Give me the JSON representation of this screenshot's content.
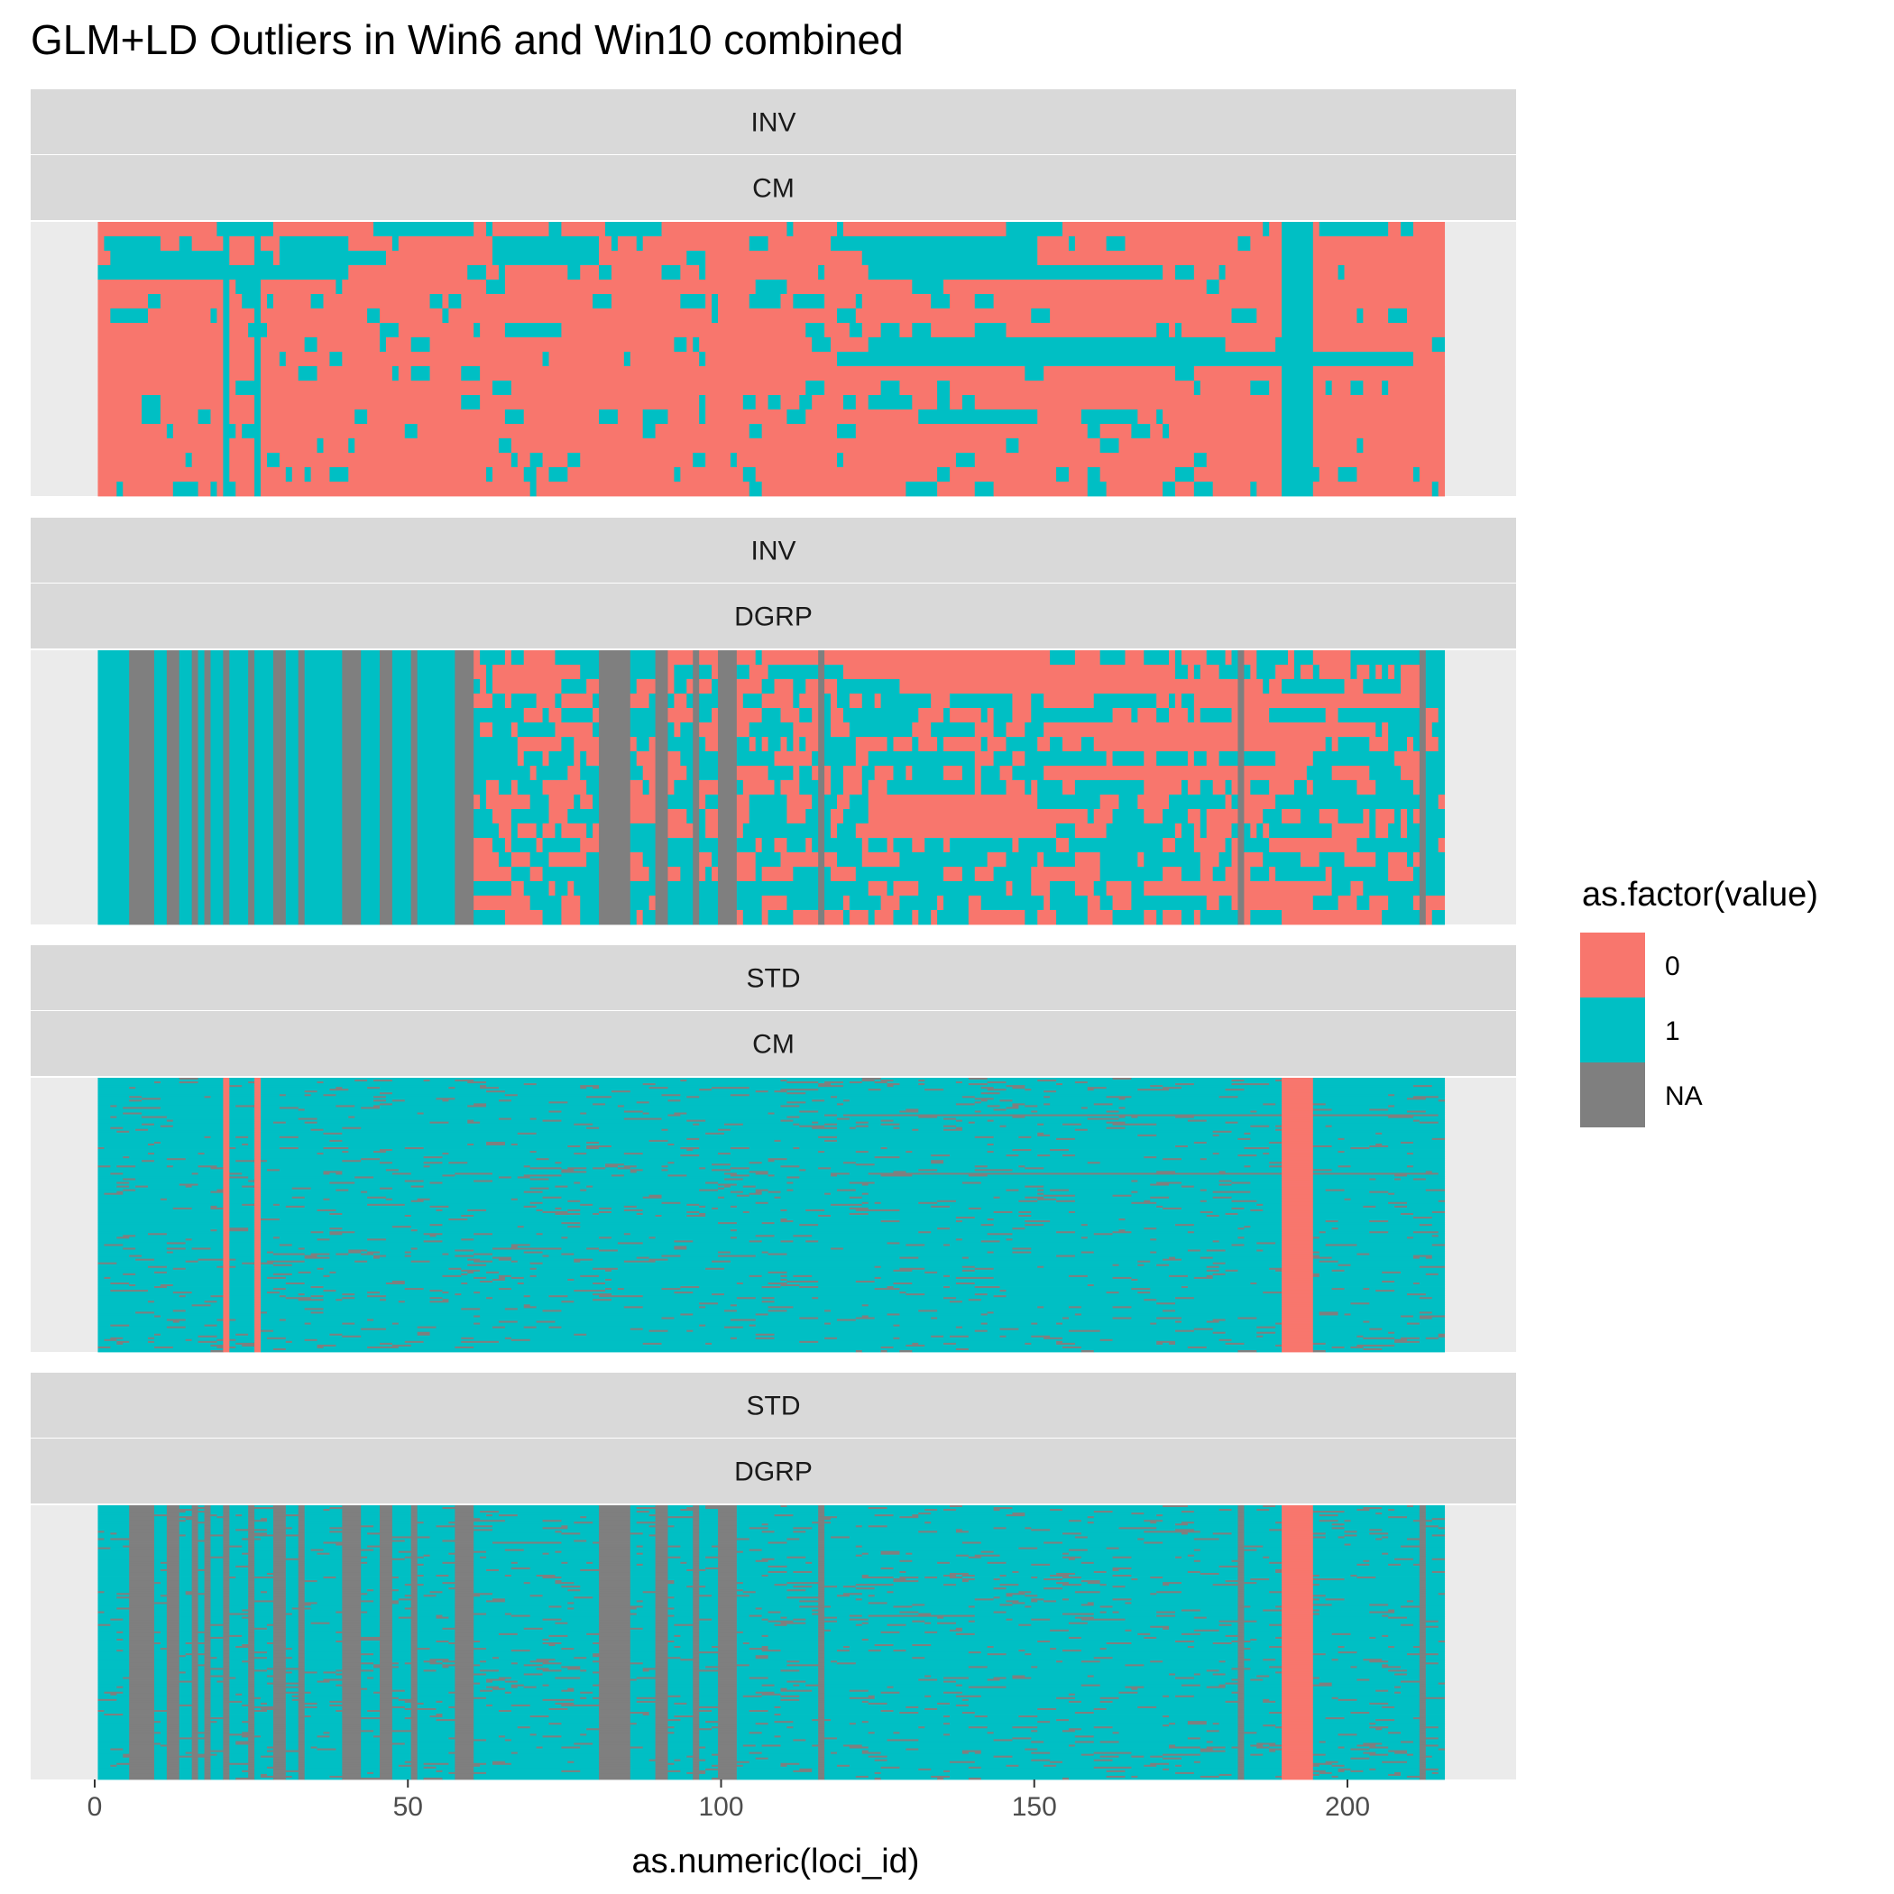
{
  "chart_data": {
    "type": "heatmap",
    "title": "GLM+LD Outliers in Win6 and Win10 combined",
    "xlabel": "as.numeric(loci_id)",
    "ylabel": "",
    "xlim": [
      0,
      226
    ],
    "x_ticks": [
      0,
      50,
      100,
      150,
      200
    ],
    "x_tick_labels": [
      "0",
      "50",
      "100",
      "150",
      "200"
    ],
    "loci_range": [
      1,
      215
    ],
    "grid": true,
    "legend": {
      "title": "as.factor(value)",
      "position": "right",
      "entries": [
        {
          "label": "0",
          "color": "#F8766D"
        },
        {
          "label": "1",
          "color": "#00BFC4"
        },
        {
          "label": "NA",
          "color": "#7F7F7F"
        }
      ]
    },
    "panels": [
      {
        "strips": [
          "INV",
          "CM"
        ],
        "n_rows": 19,
        "base_value": "0",
        "note": "mostly 0; loci 190-194 all 1; loci 21 and 26 all 1; many 1 cells in top rows",
        "full_columns": [
          {
            "from": 21,
            "to": 21,
            "value": "1"
          },
          {
            "from": 26,
            "to": 26,
            "value": "1"
          },
          {
            "from": 190,
            "to": 194,
            "value": "1"
          }
        ],
        "row_segments": [
          {
            "row": 0,
            "from": 20,
            "to": 28,
            "value": "1"
          },
          {
            "row": 0,
            "from": 45,
            "to": 60,
            "value": "1"
          },
          {
            "row": 0,
            "from": 82,
            "to": 90,
            "value": "1"
          },
          {
            "row": 0,
            "from": 146,
            "to": 154,
            "value": "1"
          },
          {
            "row": 0,
            "from": 196,
            "to": 204,
            "value": "1"
          },
          {
            "row": 1,
            "from": 2,
            "to": 10,
            "value": "1"
          },
          {
            "row": 1,
            "from": 30,
            "to": 40,
            "value": "1"
          },
          {
            "row": 1,
            "from": 64,
            "to": 80,
            "value": "1"
          },
          {
            "row": 1,
            "from": 118,
            "to": 150,
            "value": "1"
          },
          {
            "row": 2,
            "from": 4,
            "to": 20,
            "value": "1"
          },
          {
            "row": 2,
            "from": 30,
            "to": 44,
            "value": "1"
          },
          {
            "row": 2,
            "from": 64,
            "to": 80,
            "value": "1"
          },
          {
            "row": 2,
            "from": 124,
            "to": 150,
            "value": "1"
          },
          {
            "row": 3,
            "from": 1,
            "to": 40,
            "value": "1"
          },
          {
            "row": 3,
            "from": 124,
            "to": 170,
            "value": "1"
          },
          {
            "row": 7,
            "from": 67,
            "to": 74,
            "value": "1"
          },
          {
            "row": 8,
            "from": 124,
            "to": 180,
            "value": "1"
          },
          {
            "row": 9,
            "from": 119,
            "to": 210,
            "value": "1"
          },
          {
            "row": 12,
            "from": 124,
            "to": 130,
            "value": "1"
          },
          {
            "row": 13,
            "from": 132,
            "to": 150,
            "value": "1"
          },
          {
            "row": 13,
            "from": 158,
            "to": 166,
            "value": "1"
          }
        ],
        "scatter": {
          "value": "1",
          "density": 0.05,
          "col_range": [
            1,
            215
          ]
        }
      },
      {
        "strips": [
          "INV",
          "DGRP"
        ],
        "n_rows": 19,
        "base_value": "1",
        "note": "mixed 0/1 with many NA columns; right half largely 0",
        "full_columns": [
          {
            "from": 6,
            "to": 9,
            "value": "NA"
          },
          {
            "from": 12,
            "to": 13,
            "value": "NA"
          },
          {
            "from": 16,
            "to": 16,
            "value": "NA"
          },
          {
            "from": 18,
            "to": 18,
            "value": "NA"
          },
          {
            "from": 21,
            "to": 21,
            "value": "NA"
          },
          {
            "from": 25,
            "to": 25,
            "value": "NA"
          },
          {
            "from": 29,
            "to": 30,
            "value": "NA"
          },
          {
            "from": 33,
            "to": 33,
            "value": "NA"
          },
          {
            "from": 40,
            "to": 42,
            "value": "NA"
          },
          {
            "from": 46,
            "to": 47,
            "value": "NA"
          },
          {
            "from": 51,
            "to": 51,
            "value": "NA"
          },
          {
            "from": 58,
            "to": 60,
            "value": "NA"
          },
          {
            "from": 81,
            "to": 85,
            "value": "NA"
          },
          {
            "from": 90,
            "to": 91,
            "value": "NA"
          },
          {
            "from": 96,
            "to": 96,
            "value": "NA"
          },
          {
            "from": 100,
            "to": 102,
            "value": "NA"
          },
          {
            "from": 116,
            "to": 116,
            "value": "NA"
          },
          {
            "from": 183,
            "to": 183,
            "value": "NA"
          },
          {
            "from": 212,
            "to": 212,
            "value": "NA"
          }
        ],
        "row_segments": [
          {
            "row": 0,
            "from": 108,
            "to": 150,
            "value": "0"
          },
          {
            "row": 1,
            "from": 64,
            "to": 76,
            "value": "0"
          },
          {
            "row": 1,
            "from": 120,
            "to": 170,
            "value": "0"
          },
          {
            "row": 2,
            "from": 64,
            "to": 74,
            "value": "0"
          },
          {
            "row": 2,
            "from": 130,
            "to": 186,
            "value": "0"
          },
          {
            "row": 3,
            "from": 176,
            "to": 210,
            "value": "0"
          },
          {
            "row": 5,
            "from": 152,
            "to": 200,
            "value": "0"
          },
          {
            "row": 6,
            "from": 68,
            "to": 72,
            "value": "0"
          },
          {
            "row": 6,
            "from": 162,
            "to": 196,
            "value": "0"
          },
          {
            "row": 8,
            "from": 158,
            "to": 190,
            "value": "0"
          },
          {
            "row": 10,
            "from": 124,
            "to": 150,
            "value": "0"
          },
          {
            "row": 11,
            "from": 124,
            "to": 158,
            "value": "0"
          },
          {
            "row": 12,
            "from": 124,
            "to": 150,
            "value": "0"
          },
          {
            "row": 16,
            "from": 168,
            "to": 196,
            "value": "0"
          },
          {
            "row": 17,
            "from": 182,
            "to": 194,
            "value": "0"
          },
          {
            "row": 18,
            "from": 190,
            "to": 194,
            "value": "0"
          }
        ],
        "scatter": {
          "value": "0",
          "density": 0.22,
          "col_range": [
            60,
            215
          ]
        }
      },
      {
        "strips": [
          "STD",
          "CM"
        ],
        "n_rows": 150,
        "base_value": "1",
        "note": "mostly 1; loci 190-194 and 21, 26 are 0; scattered NA",
        "full_columns": [
          {
            "from": 21,
            "to": 21,
            "value": "0"
          },
          {
            "from": 26,
            "to": 26,
            "value": "0"
          },
          {
            "from": 190,
            "to": 194,
            "value": "0"
          }
        ],
        "row_segments": [
          {
            "row": 20,
            "from": 120,
            "to": 214,
            "value": "NA"
          },
          {
            "row": 52,
            "from": 124,
            "to": 214,
            "value": "NA"
          },
          {
            "row": 93,
            "from": 66,
            "to": 74,
            "value": "NA"
          }
        ],
        "scatter": {
          "value": "NA",
          "density": 0.035,
          "col_range": [
            1,
            215
          ]
        }
      },
      {
        "strips": [
          "STD",
          "DGRP"
        ],
        "n_rows": 150,
        "base_value": "1",
        "note": "mostly 1; NA columns as in INV/DGRP; loci 190-194 are 0",
        "full_columns": [
          {
            "from": 6,
            "to": 9,
            "value": "NA"
          },
          {
            "from": 12,
            "to": 13,
            "value": "NA"
          },
          {
            "from": 16,
            "to": 16,
            "value": "NA"
          },
          {
            "from": 18,
            "to": 18,
            "value": "NA"
          },
          {
            "from": 21,
            "to": 21,
            "value": "NA"
          },
          {
            "from": 25,
            "to": 25,
            "value": "NA"
          },
          {
            "from": 29,
            "to": 30,
            "value": "NA"
          },
          {
            "from": 33,
            "to": 33,
            "value": "NA"
          },
          {
            "from": 40,
            "to": 42,
            "value": "NA"
          },
          {
            "from": 46,
            "to": 47,
            "value": "NA"
          },
          {
            "from": 51,
            "to": 51,
            "value": "NA"
          },
          {
            "from": 58,
            "to": 60,
            "value": "NA"
          },
          {
            "from": 81,
            "to": 85,
            "value": "NA"
          },
          {
            "from": 90,
            "to": 91,
            "value": "NA"
          },
          {
            "from": 96,
            "to": 96,
            "value": "NA"
          },
          {
            "from": 100,
            "to": 102,
            "value": "NA"
          },
          {
            "from": 116,
            "to": 116,
            "value": "NA"
          },
          {
            "from": 183,
            "to": 183,
            "value": "NA"
          },
          {
            "from": 212,
            "to": 212,
            "value": "NA"
          },
          {
            "from": 190,
            "to": 194,
            "value": "0"
          }
        ],
        "row_segments": [
          {
            "row": 20,
            "from": 64,
            "to": 74,
            "value": "NA"
          },
          {
            "row": 14,
            "from": 168,
            "to": 176,
            "value": "NA"
          },
          {
            "row": 60,
            "from": 124,
            "to": 140,
            "value": "NA"
          }
        ],
        "scatter": {
          "value": "NA",
          "density": 0.04,
          "col_range": [
            1,
            215
          ]
        }
      }
    ]
  }
}
